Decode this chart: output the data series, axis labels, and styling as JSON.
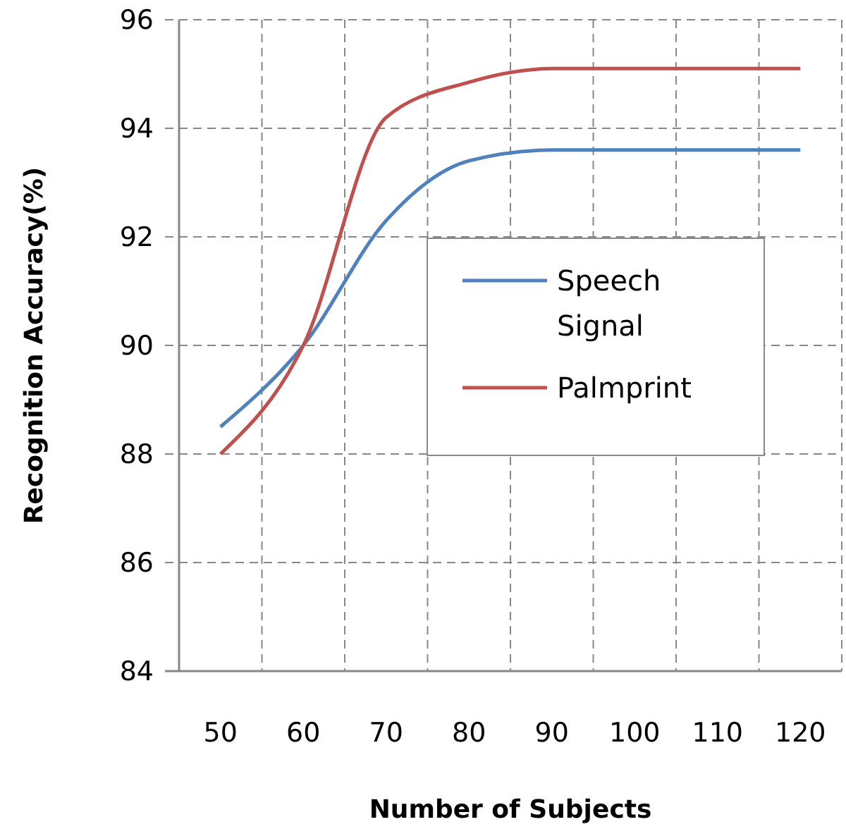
{
  "chart_data": {
    "type": "line",
    "xlabel": "Number of Subjects",
    "ylabel": "Recognition Accuracy(%)",
    "categories": [
      "50",
      "60",
      "70",
      "80",
      "90",
      "100",
      "110",
      "120"
    ],
    "series": [
      {
        "name": "Speech Signal",
        "color": "#4f81bd",
        "values": [
          88.5,
          90.0,
          92.3,
          93.4,
          93.6,
          93.6,
          93.6,
          93.6
        ]
      },
      {
        "name": "Palmprint",
        "color": "#c0504d",
        "values": [
          88.0,
          90.0,
          94.2,
          94.85,
          95.1,
          95.1,
          95.1,
          95.1
        ]
      }
    ],
    "ylim": [
      84,
      96
    ],
    "yticks": [
      84,
      86,
      88,
      90,
      92,
      94,
      96
    ],
    "grid": true,
    "legend": "right",
    "marker": "none",
    "line_style": "solid"
  }
}
